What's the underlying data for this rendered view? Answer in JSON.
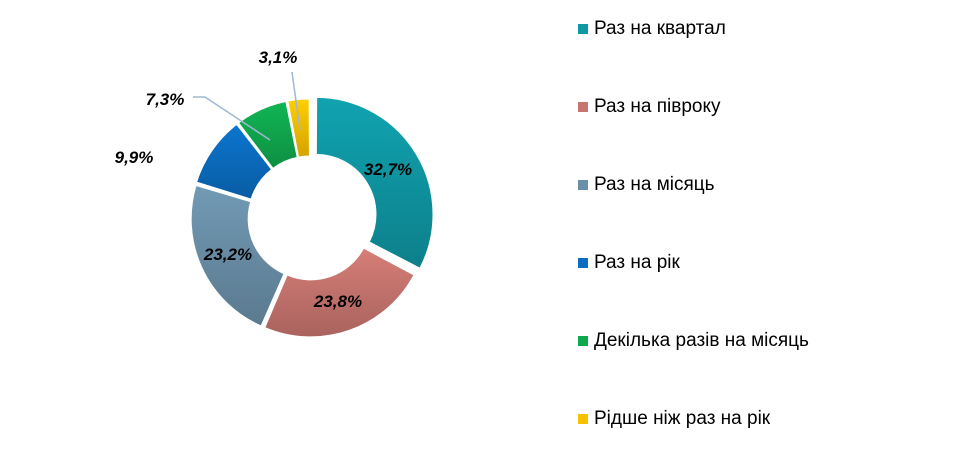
{
  "chart_data": {
    "type": "pie",
    "subtype": "donut",
    "title": "",
    "categories": [
      "Раз на квартал",
      "Раз на півроку",
      "Раз на місяць",
      "Раз на рік",
      "Декілька разів на місяць",
      "Рідше ніж раз на рік"
    ],
    "values": [
      32.7,
      23.8,
      23.2,
      9.9,
      7.3,
      3.1
    ],
    "labels": [
      "32,7%",
      "23,8%",
      "23,2%",
      "9,9%",
      "7,3%",
      "3,1%"
    ],
    "colors": [
      "#0f97a3",
      "#c7756e",
      "#6a8fa8",
      "#0b6cc0",
      "#10a84e",
      "#f9c000"
    ],
    "unit": "%",
    "legend_position": "right",
    "exploded_slice": "Раз на квартал"
  },
  "legend": {
    "items": [
      {
        "label": "Раз на квартал",
        "color": "#0f97a3"
      },
      {
        "label": "Раз на півроку",
        "color": "#c7756e"
      },
      {
        "label": "Раз на місяць",
        "color": "#6a8fa8"
      },
      {
        "label": "Раз на рік",
        "color": "#0b6cc0"
      },
      {
        "label": "Декілька разів на місяць",
        "color": "#10a84e"
      },
      {
        "label": "Рідше ніж раз на рік",
        "color": "#f9c000"
      }
    ]
  }
}
